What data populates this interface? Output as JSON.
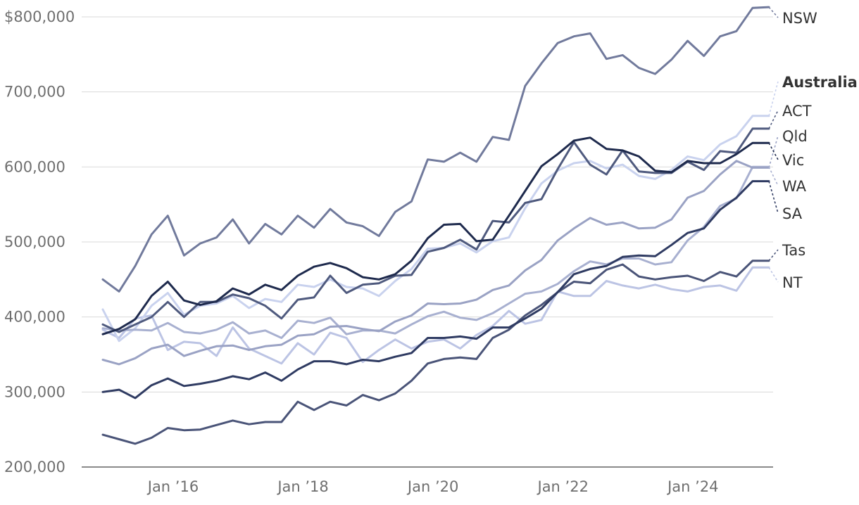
{
  "chart_data": {
    "type": "line",
    "title": "",
    "xlabel": "",
    "ylabel": "",
    "ylim": [
      200000,
      800000
    ],
    "grid": true,
    "legend": "direct labels at right end of lines",
    "y_ticks": [
      {
        "value": 800000,
        "label": "$800,000"
      },
      {
        "value": 700000,
        "label": "700,000"
      },
      {
        "value": 600000,
        "label": "600,000"
      },
      {
        "value": 500000,
        "label": "500,000"
      },
      {
        "value": 400000,
        "label": "400,000"
      },
      {
        "value": 300000,
        "label": "300,000"
      },
      {
        "value": 200000,
        "label": "200,000"
      }
    ],
    "x_ticks": [
      {
        "value": "2016-01",
        "label": "Jan ’16"
      },
      {
        "value": "2018-01",
        "label": "Jan ’18"
      },
      {
        "value": "2020-01",
        "label": "Jan ’20"
      },
      {
        "value": "2022-01",
        "label": "Jan ’22"
      },
      {
        "value": "2024-01",
        "label": "Jan ’24"
      }
    ],
    "x": [
      "2014-12",
      "2015-03",
      "2015-06",
      "2015-09",
      "2015-12",
      "2016-03",
      "2016-06",
      "2016-09",
      "2016-12",
      "2017-03",
      "2017-06",
      "2017-09",
      "2017-12",
      "2018-03",
      "2018-06",
      "2018-09",
      "2018-12",
      "2019-03",
      "2019-06",
      "2019-09",
      "2019-12",
      "2020-03",
      "2020-06",
      "2020-09",
      "2020-12",
      "2021-03",
      "2021-06",
      "2021-09",
      "2021-12",
      "2022-03",
      "2022-06",
      "2022-09",
      "2022-12",
      "2023-03",
      "2023-06",
      "2023-09",
      "2023-12",
      "2024-03",
      "2024-06",
      "2024-09",
      "2024-12",
      "2025-03"
    ],
    "series": [
      {
        "name": "NSW",
        "color": "#717a9c",
        "bold": false,
        "values": [
          450000,
          434000,
          468000,
          510000,
          535000,
          482000,
          498000,
          506000,
          530000,
          498000,
          524000,
          510000,
          535000,
          519000,
          544000,
          526000,
          521000,
          508000,
          540000,
          554000,
          610000,
          607000,
          619000,
          607000,
          640000,
          636000,
          708000,
          738000,
          765000,
          774000,
          778000,
          744000,
          749000,
          732000,
          724000,
          743000,
          768000,
          748000,
          774000,
          781000,
          812000,
          813000
        ]
      },
      {
        "name": "Australia",
        "color": "#c9d2ee",
        "bold": true,
        "values": [
          410000,
          368000,
          385000,
          415000,
          432000,
          403000,
          415000,
          418000,
          428000,
          412000,
          424000,
          420000,
          443000,
          440000,
          450000,
          440000,
          438000,
          428000,
          448000,
          464000,
          491000,
          492000,
          498000,
          486000,
          501000,
          506000,
          545000,
          578000,
          595000,
          605000,
          608000,
          598000,
          603000,
          588000,
          584000,
          596000,
          614000,
          609000,
          630000,
          641000,
          668000,
          668000
        ]
      },
      {
        "name": "ACT",
        "color": "#4f5a7e",
        "bold": false,
        "values": [
          390000,
          380000,
          390000,
          400000,
          420000,
          400000,
          420000,
          420000,
          430000,
          425000,
          415000,
          398000,
          423000,
          426000,
          455000,
          432000,
          443000,
          445000,
          455000,
          456000,
          487000,
          492000,
          503000,
          490000,
          528000,
          526000,
          552000,
          557000,
          597000,
          633000,
          603000,
          590000,
          622000,
          594000,
          592000,
          592000,
          607000,
          596000,
          621000,
          619000,
          651000,
          651000
        ]
      },
      {
        "name": "Qld",
        "color": "#9aa2c4",
        "bold": false,
        "values": [
          343000,
          337000,
          345000,
          358000,
          363000,
          348000,
          355000,
          361000,
          362000,
          356000,
          361000,
          363000,
          375000,
          377000,
          387000,
          388000,
          384000,
          381000,
          394000,
          402000,
          418000,
          417000,
          418000,
          423000,
          436000,
          442000,
          462000,
          476000,
          502000,
          518000,
          532000,
          523000,
          526000,
          518000,
          519000,
          530000,
          559000,
          568000,
          590000,
          608000,
          599000,
          599000
        ]
      },
      {
        "name": "Vic",
        "color": "#1e2a4d",
        "bold": false,
        "values": [
          377000,
          384000,
          397000,
          428000,
          447000,
          422000,
          416000,
          421000,
          438000,
          430000,
          443000,
          436000,
          455000,
          467000,
          472000,
          465000,
          453000,
          450000,
          457000,
          475000,
          505000,
          523000,
          524000,
          501000,
          503000,
          535000,
          568000,
          601000,
          617000,
          635000,
          639000,
          624000,
          622000,
          614000,
          595000,
          593000,
          608000,
          605000,
          605000,
          617000,
          632000,
          632000
        ]
      },
      {
        "name": "WA",
        "color": "#a8b0d0",
        "bold": false,
        "values": [
          385000,
          382000,
          383000,
          382000,
          392000,
          380000,
          378000,
          383000,
          393000,
          378000,
          382000,
          372000,
          395000,
          392000,
          399000,
          377000,
          382000,
          382000,
          378000,
          390000,
          401000,
          407000,
          399000,
          396000,
          405000,
          418000,
          431000,
          434000,
          444000,
          461000,
          474000,
          470000,
          478000,
          478000,
          470000,
          473000,
          502000,
          520000,
          548000,
          558000,
          600000,
          600000
        ]
      },
      {
        "name": "SA",
        "color": "#2f3b62",
        "bold": false,
        "values": [
          300000,
          303000,
          292000,
          309000,
          318000,
          308000,
          311000,
          315000,
          321000,
          317000,
          326000,
          315000,
          330000,
          341000,
          341000,
          337000,
          343000,
          341000,
          347000,
          352000,
          372000,
          372000,
          374000,
          371000,
          386000,
          386000,
          398000,
          411000,
          433000,
          457000,
          464000,
          468000,
          480000,
          482000,
          481000,
          496000,
          512000,
          518000,
          543000,
          559000,
          581000,
          581000
        ]
      },
      {
        "name": "Tas",
        "color": "#4a5478",
        "bold": false,
        "values": [
          243000,
          237000,
          231000,
          239000,
          252000,
          249000,
          250000,
          256000,
          262000,
          257000,
          260000,
          260000,
          287000,
          276000,
          287000,
          282000,
          296000,
          289000,
          298000,
          315000,
          338000,
          344000,
          346000,
          344000,
          372000,
          383000,
          402000,
          416000,
          433000,
          447000,
          445000,
          463000,
          470000,
          454000,
          450000,
          453000,
          455000,
          448000,
          460000,
          454000,
          475000,
          475000
        ]
      },
      {
        "name": "NT",
        "color": "#bcc4e4",
        "bold": false,
        "values": [
          383000,
          372000,
          398000,
          402000,
          356000,
          367000,
          365000,
          348000,
          386000,
          358000,
          348000,
          338000,
          365000,
          350000,
          379000,
          372000,
          340000,
          356000,
          370000,
          358000,
          367000,
          370000,
          358000,
          376000,
          388000,
          408000,
          391000,
          396000,
          434000,
          428000,
          428000,
          448000,
          442000,
          438000,
          443000,
          437000,
          434000,
          440000,
          442000,
          435000,
          466000,
          466000
        ]
      }
    ],
    "labels": [
      {
        "series": "NSW",
        "text": "NSW"
      },
      {
        "series": "Australia",
        "text": "Australia"
      },
      {
        "series": "ACT",
        "text": "ACT"
      },
      {
        "series": "Qld",
        "text": "Qld"
      },
      {
        "series": "Vic",
        "text": "Vic"
      },
      {
        "series": "WA",
        "text": "WA"
      },
      {
        "series": "SA",
        "text": "SA"
      },
      {
        "series": "Tas",
        "text": "Tas"
      },
      {
        "series": "NT",
        "text": "NT"
      }
    ]
  }
}
